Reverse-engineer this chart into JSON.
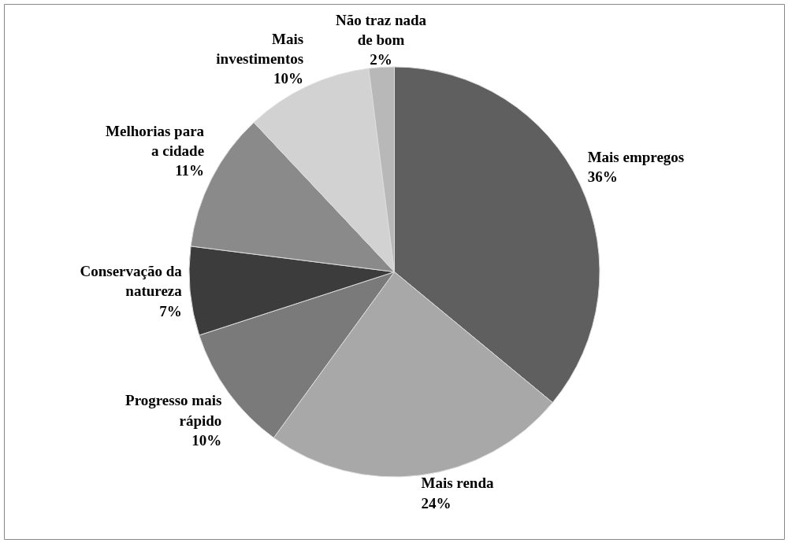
{
  "chart_data": {
    "type": "pie",
    "categories": [
      "Mais empregos",
      "Mais renda",
      "Progresso mais rápido",
      "Conservação da natureza",
      "Melhorias para a cidade",
      "Mais investimentos",
      "Não traz nada de bom"
    ],
    "values": [
      36,
      24,
      10,
      7,
      11,
      10,
      2
    ],
    "colors": [
      "#5f5f5f",
      "#a8a8a8",
      "#7a7a7a",
      "#3c3c3c",
      "#8a8a8a",
      "#d2d2d2",
      "#b8b8b8"
    ],
    "value_labels": [
      "36%",
      "24%",
      "10%",
      "7%",
      "11%",
      "10%",
      "2%"
    ]
  }
}
